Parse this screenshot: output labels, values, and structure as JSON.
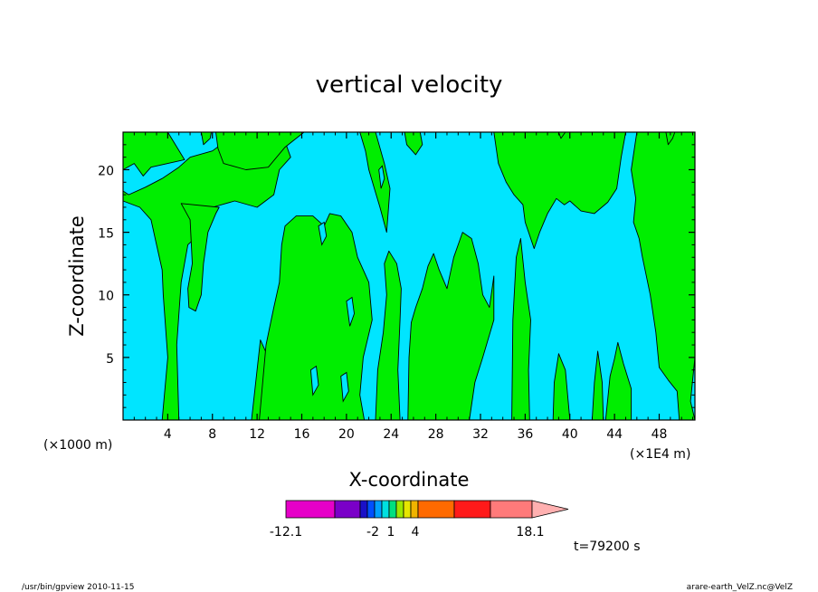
{
  "chart_data": {
    "type": "heatmap",
    "title": "vertical velocity",
    "xlabel": "X-coordinate",
    "ylabel": "Z-coordinate",
    "x_unit_label": "(×1000 m)",
    "x_unit_label_right": "(×1E4 m)",
    "xlim": [
      0,
      51.2
    ],
    "ylim": [
      0,
      23
    ],
    "x_ticks": [
      4,
      8,
      12,
      16,
      20,
      24,
      28,
      32,
      36,
      40,
      44,
      48
    ],
    "y_ticks": [
      5,
      10,
      15,
      20
    ],
    "colors": {
      "negative_region": "#00e5ff",
      "positive_region": "#00ee00",
      "contour": "#000000"
    },
    "colorbar": {
      "colors": [
        "#e600c8",
        "#7a00c8",
        "#1a10c8",
        "#0050ff",
        "#00a0ff",
        "#00e0e0",
        "#00e080",
        "#9be800",
        "#e6e600",
        "#f0b400",
        "#ff6a00",
        "#ff1a1a",
        "#ff7a7a",
        "#ffb0b0"
      ],
      "labels": [
        "-12.1",
        "-2",
        "1",
        "4",
        "18.1"
      ]
    },
    "time_label": "t=79200 s",
    "footer_left": "/usr/bin/gpview   2010-11-15",
    "footer_right": "arare-earth_VelZ.nc@VelZ"
  }
}
